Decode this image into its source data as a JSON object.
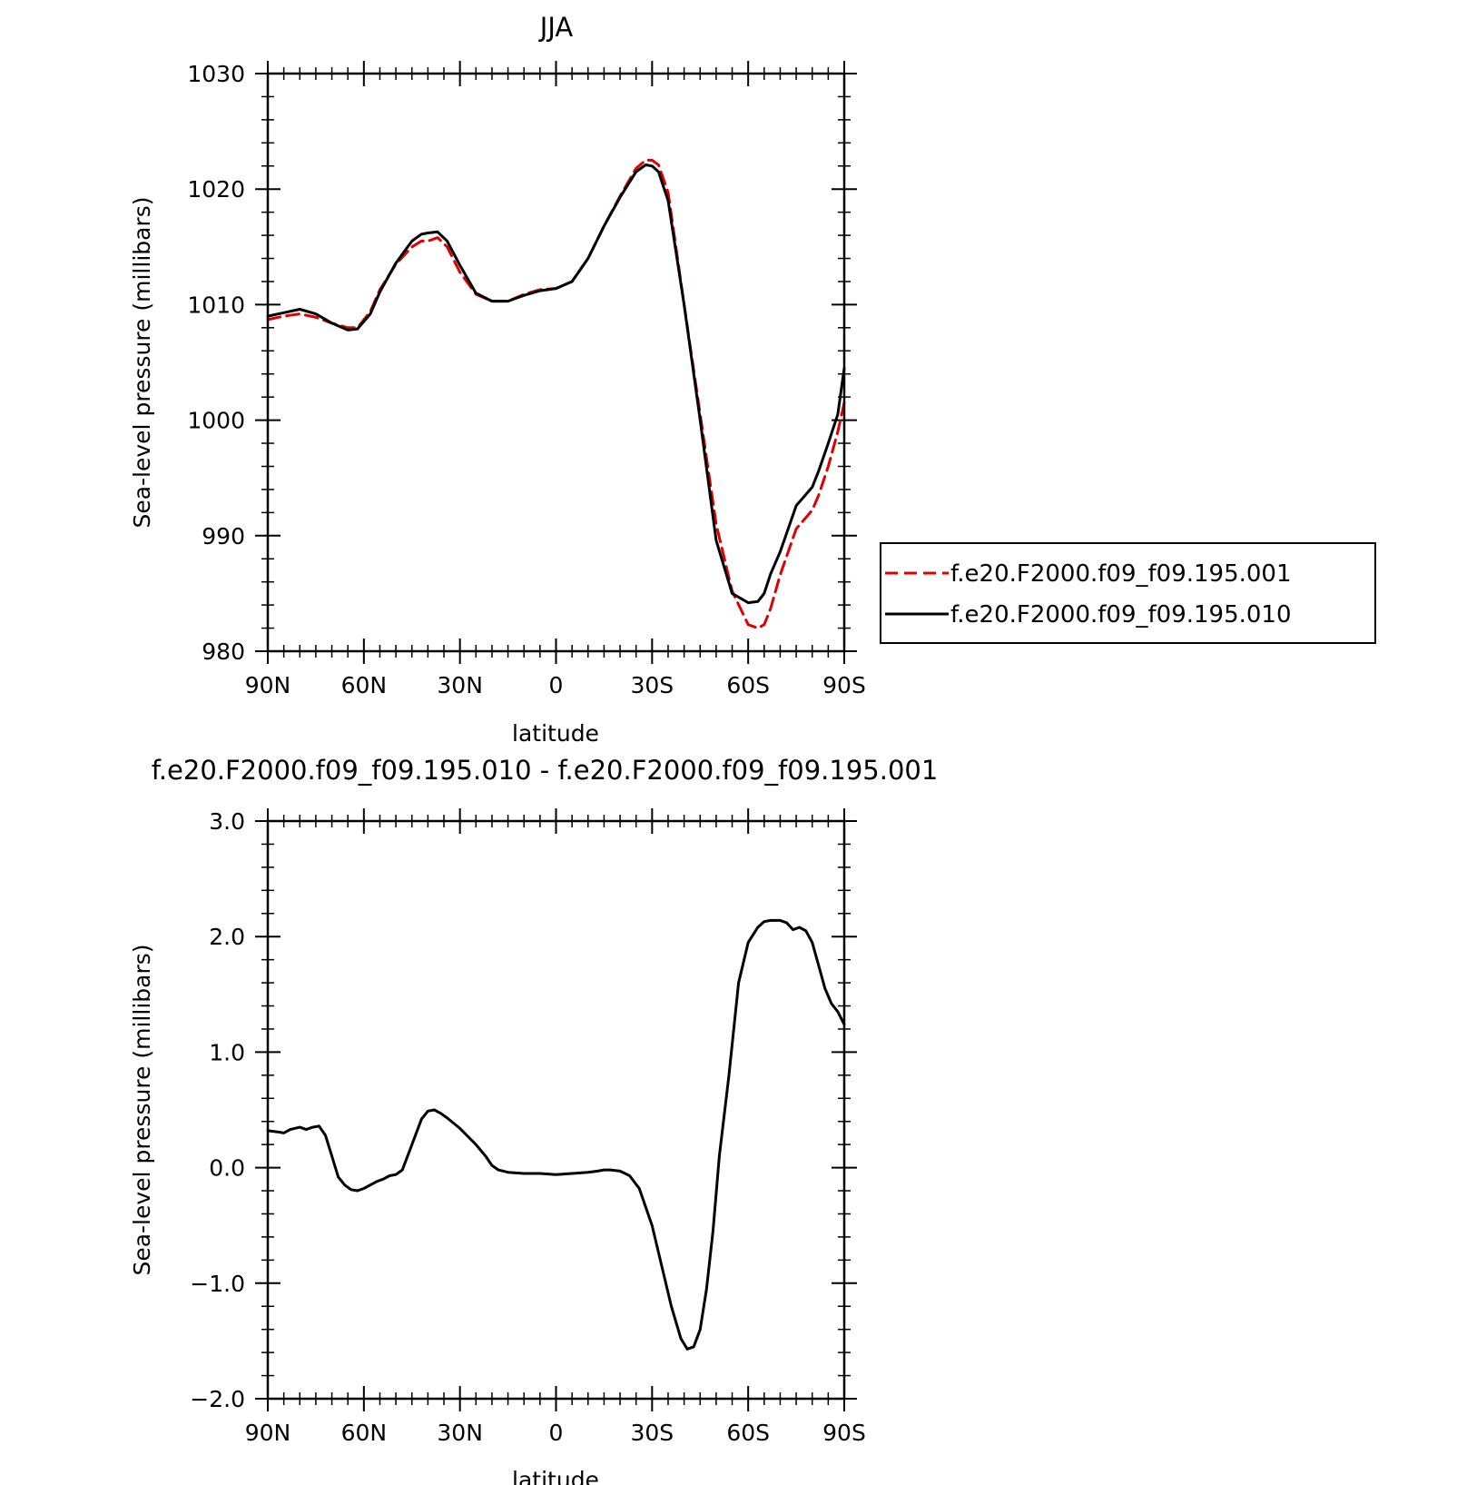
{
  "chart_data": [
    {
      "type": "line",
      "title": "JJA",
      "xlabel": "latitude",
      "ylabel": "Sea-level pressure (millibars)",
      "xlim": [
        90,
        -90
      ],
      "ylim": [
        980,
        1030
      ],
      "xticks": [
        90,
        60,
        30,
        0,
        -30,
        -60,
        -90
      ],
      "xtick_labels": [
        "90N",
        "60N",
        "30N",
        "0",
        "30S",
        "60S",
        "90S"
      ],
      "yticks": [
        980,
        990,
        1000,
        1010,
        1020,
        1030
      ],
      "ytick_labels": [
        "980",
        "990",
        "1000",
        "1010",
        "1020",
        "1030"
      ],
      "grid": false,
      "legend_position": "right",
      "series": [
        {
          "name": "f.e20.F2000.f09_f09.195.001",
          "color": "#e00000",
          "dash": "dashed",
          "x": [
            90,
            85,
            80,
            75,
            70,
            65,
            62,
            58,
            55,
            50,
            45,
            42,
            40,
            37,
            34,
            30,
            25,
            20,
            15,
            10,
            5,
            0,
            -5,
            -10,
            -15,
            -20,
            -25,
            -28,
            -30,
            -32,
            -35,
            -40,
            -45,
            -50,
            -55,
            -60,
            -63,
            -65,
            -67,
            -70,
            -75,
            -80,
            -82,
            -85,
            -88,
            -90
          ],
          "y": [
            1008.7,
            1009.0,
            1009.2,
            1008.9,
            1008.4,
            1008.0,
            1008.0,
            1009.4,
            1011.3,
            1013.5,
            1015.0,
            1015.5,
            1015.5,
            1015.8,
            1015.0,
            1012.8,
            1010.9,
            1010.3,
            1010.3,
            1010.9,
            1011.3,
            1011.4,
            1012.0,
            1014.0,
            1016.8,
            1019.4,
            1021.8,
            1022.5,
            1022.5,
            1022.1,
            1019.7,
            1010.0,
            1000.5,
            991.0,
            985.2,
            982.3,
            982.0,
            982.3,
            983.7,
            986.6,
            990.6,
            992.2,
            993.5,
            996.0,
            999.0,
            1001.5
          ]
        },
        {
          "name": "f.e20.F2000.f09_f09.195.010",
          "color": "#000000",
          "dash": "solid",
          "x": [
            90,
            85,
            80,
            75,
            70,
            65,
            62,
            58,
            55,
            50,
            45,
            42,
            40,
            37,
            34,
            30,
            25,
            20,
            15,
            10,
            5,
            0,
            -5,
            -10,
            -15,
            -20,
            -25,
            -28,
            -30,
            -32,
            -35,
            -40,
            -45,
            -50,
            -55,
            -60,
            -63,
            -65,
            -67,
            -70,
            -75,
            -80,
            -82,
            -85,
            -88,
            -90
          ],
          "y": [
            1009.0,
            1009.3,
            1009.6,
            1009.2,
            1008.4,
            1007.8,
            1007.9,
            1009.2,
            1011.1,
            1013.6,
            1015.5,
            1016.1,
            1016.2,
            1016.3,
            1015.5,
            1013.4,
            1011.0,
            1010.3,
            1010.3,
            1010.8,
            1011.2,
            1011.4,
            1012.0,
            1014.0,
            1016.8,
            1019.3,
            1021.5,
            1022.1,
            1022.0,
            1021.5,
            1019.0,
            1010.0,
            1000.0,
            989.6,
            985.0,
            984.2,
            984.3,
            985.0,
            986.7,
            988.6,
            992.6,
            994.2,
            995.6,
            998.0,
            1000.5,
            1004.5
          ]
        }
      ]
    },
    {
      "type": "line",
      "title": "f.e20.F2000.f09_f09.195.010 - f.e20.F2000.f09_f09.195.001",
      "xlabel": "latitude",
      "ylabel": "Sea-level pressure (millibars)",
      "xlim": [
        90,
        -90
      ],
      "ylim": [
        -2.0,
        3.0
      ],
      "xticks": [
        90,
        60,
        30,
        0,
        -30,
        -60,
        -90
      ],
      "xtick_labels": [
        "90N",
        "60N",
        "30N",
        "0",
        "30S",
        "60S",
        "90S"
      ],
      "yticks": [
        -2.0,
        -1.0,
        0.0,
        1.0,
        2.0,
        3.0
      ],
      "ytick_labels": [
        "-2.0",
        "-1.0",
        "0.0",
        "1.0",
        "2.0",
        "3.0"
      ],
      "grid": false,
      "series": [
        {
          "color": "#000000",
          "dash": "solid",
          "x": [
            90,
            87,
            85,
            83,
            80,
            78,
            76,
            74,
            72,
            70,
            68,
            66,
            64,
            62,
            60,
            58,
            56,
            54,
            52,
            50,
            48,
            45,
            42,
            40,
            38,
            36,
            34,
            30,
            25,
            22,
            20,
            18,
            15,
            10,
            5,
            0,
            -5,
            -10,
            -13,
            -15,
            -17,
            -20,
            -23,
            -26,
            -30,
            -33,
            -36,
            -39,
            -41,
            -43,
            -45,
            -47,
            -49,
            -51,
            -54,
            -57,
            -60,
            -63,
            -65,
            -67,
            -70,
            -72,
            -74,
            -76,
            -78,
            -80,
            -82,
            -84,
            -86,
            -88,
            -90
          ],
          "y": [
            0.32,
            0.31,
            0.3,
            0.33,
            0.35,
            0.33,
            0.35,
            0.36,
            0.28,
            0.1,
            -0.08,
            -0.15,
            -0.19,
            -0.2,
            -0.18,
            -0.15,
            -0.12,
            -0.1,
            -0.07,
            -0.06,
            -0.02,
            0.2,
            0.42,
            0.49,
            0.5,
            0.47,
            0.43,
            0.34,
            0.2,
            0.1,
            0.02,
            -0.02,
            -0.04,
            -0.05,
            -0.05,
            -0.06,
            -0.05,
            -0.04,
            -0.03,
            -0.02,
            -0.02,
            -0.03,
            -0.07,
            -0.18,
            -0.5,
            -0.85,
            -1.2,
            -1.48,
            -1.57,
            -1.55,
            -1.4,
            -1.05,
            -0.55,
            0.1,
            0.8,
            1.6,
            1.95,
            2.08,
            2.13,
            2.14,
            2.14,
            2.12,
            2.06,
            2.08,
            2.05,
            1.95,
            1.75,
            1.55,
            1.42,
            1.35,
            1.24
          ]
        }
      ]
    }
  ]
}
